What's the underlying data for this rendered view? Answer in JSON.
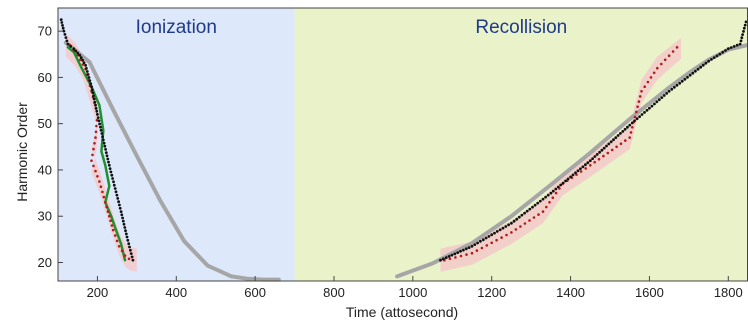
{
  "chart_data": {
    "type": "line",
    "title": "",
    "xlabel": "Time (attosecond)",
    "ylabel": "Harmonic Order",
    "xlim": [
      100,
      1850
    ],
    "ylim": [
      16,
      75
    ],
    "xticks": [
      200,
      400,
      600,
      800,
      1000,
      1200,
      1400,
      1600,
      1800
    ],
    "yticks": [
      20,
      30,
      40,
      50,
      60,
      70
    ],
    "grid": false,
    "legend": "none",
    "regions": [
      {
        "label": "Ionization",
        "x_range": [
          100,
          700
        ],
        "color": "#dde8fb"
      },
      {
        "label": "Recollision",
        "x_range": [
          700,
          1850
        ],
        "color": "#e9f2c9"
      }
    ],
    "colors": {
      "gray_curve": "#a6a6a6",
      "black_dots": "#111111",
      "red_dots": "#b01c1c",
      "pink_band": "#f3c9c9",
      "green_curve": "#1f8f2f"
    },
    "series": [
      {
        "style": "gray-solid",
        "x": [
          120,
          180,
          240,
          300,
          360,
          420,
          480,
          540,
          580,
          620,
          660
        ],
        "y": [
          67.5,
          63.3,
          53.0,
          43.0,
          33.3,
          24.6,
          19.3,
          17.0,
          16.5,
          16.3,
          16.3
        ]
      },
      {
        "style": "black-dotted",
        "x": [
          108,
          115,
          125,
          140,
          155,
          170,
          185,
          200,
          215,
          230,
          245,
          260,
          275,
          290
        ],
        "y": [
          72.5,
          70.0,
          67.2,
          66.2,
          64.8,
          62.6,
          58.0,
          52.0,
          46.5,
          41.0,
          36.0,
          31.0,
          25.5,
          20.5
        ]
      },
      {
        "style": "red-dotted",
        "x": [
          130,
          150,
          170,
          185,
          200,
          195,
          185,
          205,
          220,
          230,
          240,
          255,
          270,
          280,
          290
        ],
        "y": [
          67.0,
          64.8,
          61.8,
          57.0,
          52.0,
          47.0,
          42.0,
          37.5,
          33.0,
          30.0,
          27.0,
          23.5,
          21.5,
          20.8,
          20.5
        ]
      },
      {
        "style": "green-solid",
        "x": [
          125,
          140,
          160,
          185,
          205,
          215,
          210,
          220,
          230,
          220,
          235,
          245,
          260,
          270
        ],
        "y": [
          66.5,
          65.5,
          62.0,
          58.0,
          54.0,
          48.5,
          44.0,
          41.0,
          36.5,
          33.0,
          30.0,
          27.5,
          24.0,
          20.5
        ]
      },
      {
        "style": "gray-solid",
        "x": [
          960,
          1050,
          1150,
          1250,
          1350,
          1450,
          1550,
          1650,
          1700,
          1750,
          1800,
          1850
        ],
        "y": [
          17.0,
          19.8,
          24.2,
          30.0,
          36.8,
          43.7,
          51.0,
          57.8,
          61.0,
          63.8,
          66.0,
          67.0
        ]
      },
      {
        "style": "black-dotted",
        "x": [
          1070,
          1150,
          1250,
          1350,
          1450,
          1550,
          1650,
          1750,
          1800,
          1830,
          1845
        ],
        "y": [
          20.5,
          23.5,
          28.5,
          35.0,
          42.0,
          49.7,
          57.0,
          63.5,
          66.2,
          67.2,
          72.0
        ]
      },
      {
        "style": "red-dotted",
        "x": [
          1080,
          1150,
          1250,
          1330,
          1380,
          1450,
          1550,
          1580,
          1620,
          1670
        ],
        "y": [
          20.5,
          22.0,
          26.5,
          31.0,
          37.0,
          41.0,
          47.0,
          57.0,
          62.0,
          66.5
        ]
      }
    ],
    "bands": [
      {
        "x": [
          120,
          145,
          165,
          182,
          200,
          198,
          185,
          205,
          222,
          232,
          243,
          258,
          272,
          284,
          300
        ],
        "upper": [
          69.5,
          67.3,
          64.3,
          59.5,
          54.5,
          49.5,
          44.5,
          40.0,
          35.5,
          32.5,
          29.5,
          26.0,
          24.0,
          23.3,
          23.0
        ],
        "lower": [
          64.5,
          62.3,
          59.3,
          54.5,
          49.5,
          44.5,
          39.5,
          35.0,
          30.5,
          27.5,
          24.5,
          21.0,
          19.0,
          18.3,
          18.0
        ]
      },
      {
        "x": [
          1070,
          1150,
          1250,
          1330,
          1380,
          1450,
          1550,
          1580,
          1620,
          1680
        ],
        "upper": [
          23.0,
          24.5,
          29.0,
          33.5,
          39.5,
          43.5,
          49.5,
          59.5,
          64.5,
          68.5
        ],
        "lower": [
          18.0,
          19.5,
          24.0,
          28.5,
          34.5,
          38.5,
          44.5,
          54.5,
          59.5,
          64.0
        ]
      }
    ]
  }
}
